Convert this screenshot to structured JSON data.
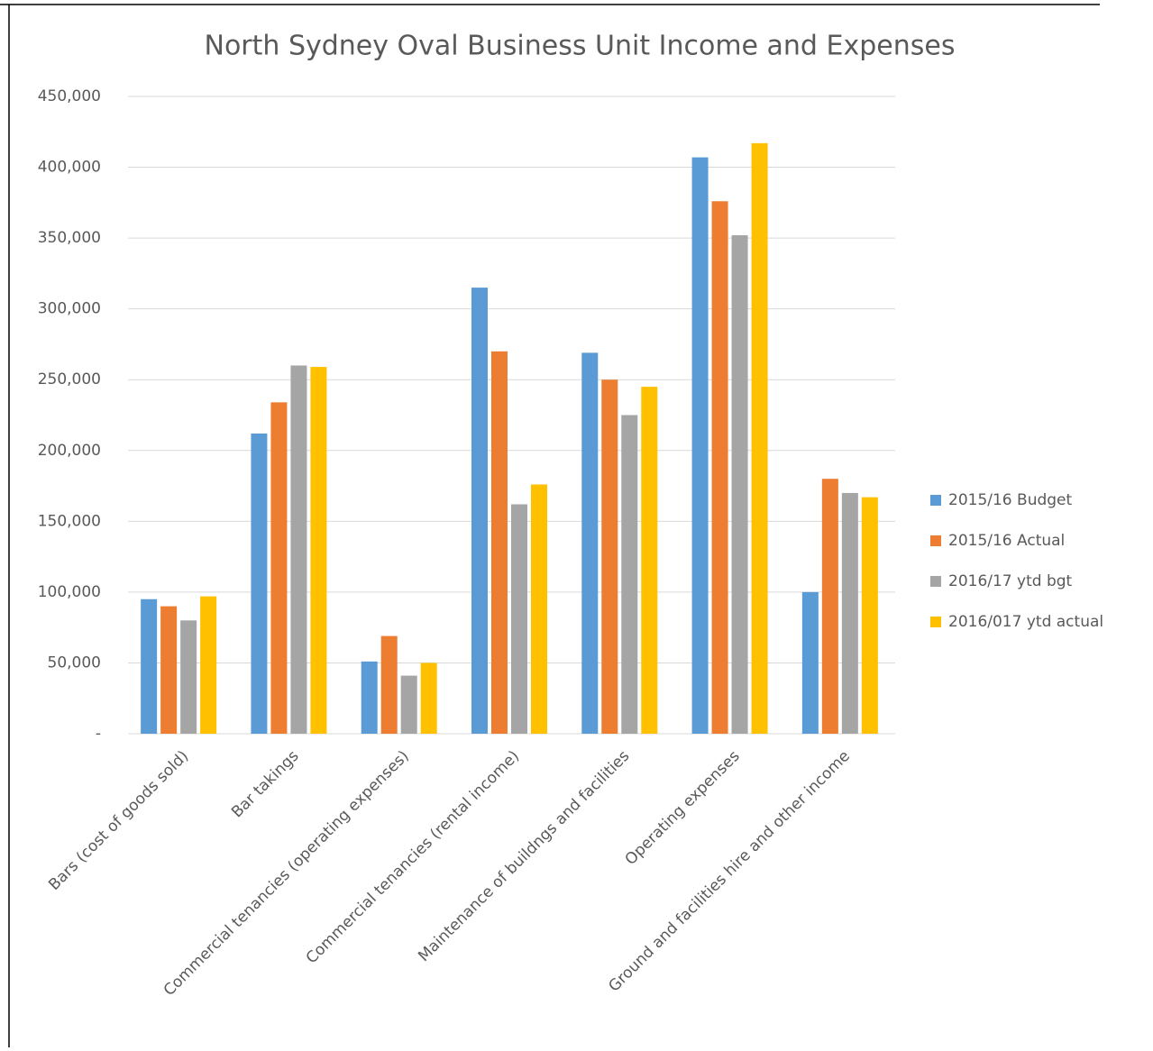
{
  "chart_data": {
    "type": "bar",
    "title": "North Sydney Oval Business Unit Income and Expenses",
    "categories": [
      "Bars (cost of goods sold)",
      "Bar takings",
      "Commercial tenancies (operating expenses)",
      "Commercial tenancies (rental income)",
      "Maintenance of buildngs and facilities",
      "Operating expenses",
      "Ground and facilities hire and other income"
    ],
    "series": [
      {
        "name": "2015/16 Budget",
        "color": "#5b9bd5",
        "values": [
          95000,
          212000,
          51000,
          315000,
          269000,
          407000,
          100000
        ]
      },
      {
        "name": "2015/16 Actual",
        "color": "#ed7d31",
        "values": [
          90000,
          234000,
          69000,
          270000,
          250000,
          376000,
          180000
        ]
      },
      {
        "name": "2016/17 ytd bgt",
        "color": "#a5a5a5",
        "values": [
          80000,
          260000,
          41000,
          162000,
          225000,
          352000,
          170000
        ]
      },
      {
        "name": "2016/017 ytd actual",
        "color": "#ffc000",
        "values": [
          97000,
          259000,
          50000,
          176000,
          245000,
          417000,
          167000
        ]
      }
    ],
    "ylim": [
      0,
      450000
    ],
    "yticks": [
      {
        "value": 0,
        "label": "-"
      },
      {
        "value": 50000,
        "label": "50,000"
      },
      {
        "value": 100000,
        "label": "100,000"
      },
      {
        "value": 150000,
        "label": "150,000"
      },
      {
        "value": 200000,
        "label": "200,000"
      },
      {
        "value": 250000,
        "label": "250,000"
      },
      {
        "value": 300000,
        "label": "300,000"
      },
      {
        "value": 350000,
        "label": "350,000"
      },
      {
        "value": 400000,
        "label": "400,000"
      },
      {
        "value": 450000,
        "label": "450,000"
      }
    ],
    "grid": true,
    "legend": "right"
  }
}
